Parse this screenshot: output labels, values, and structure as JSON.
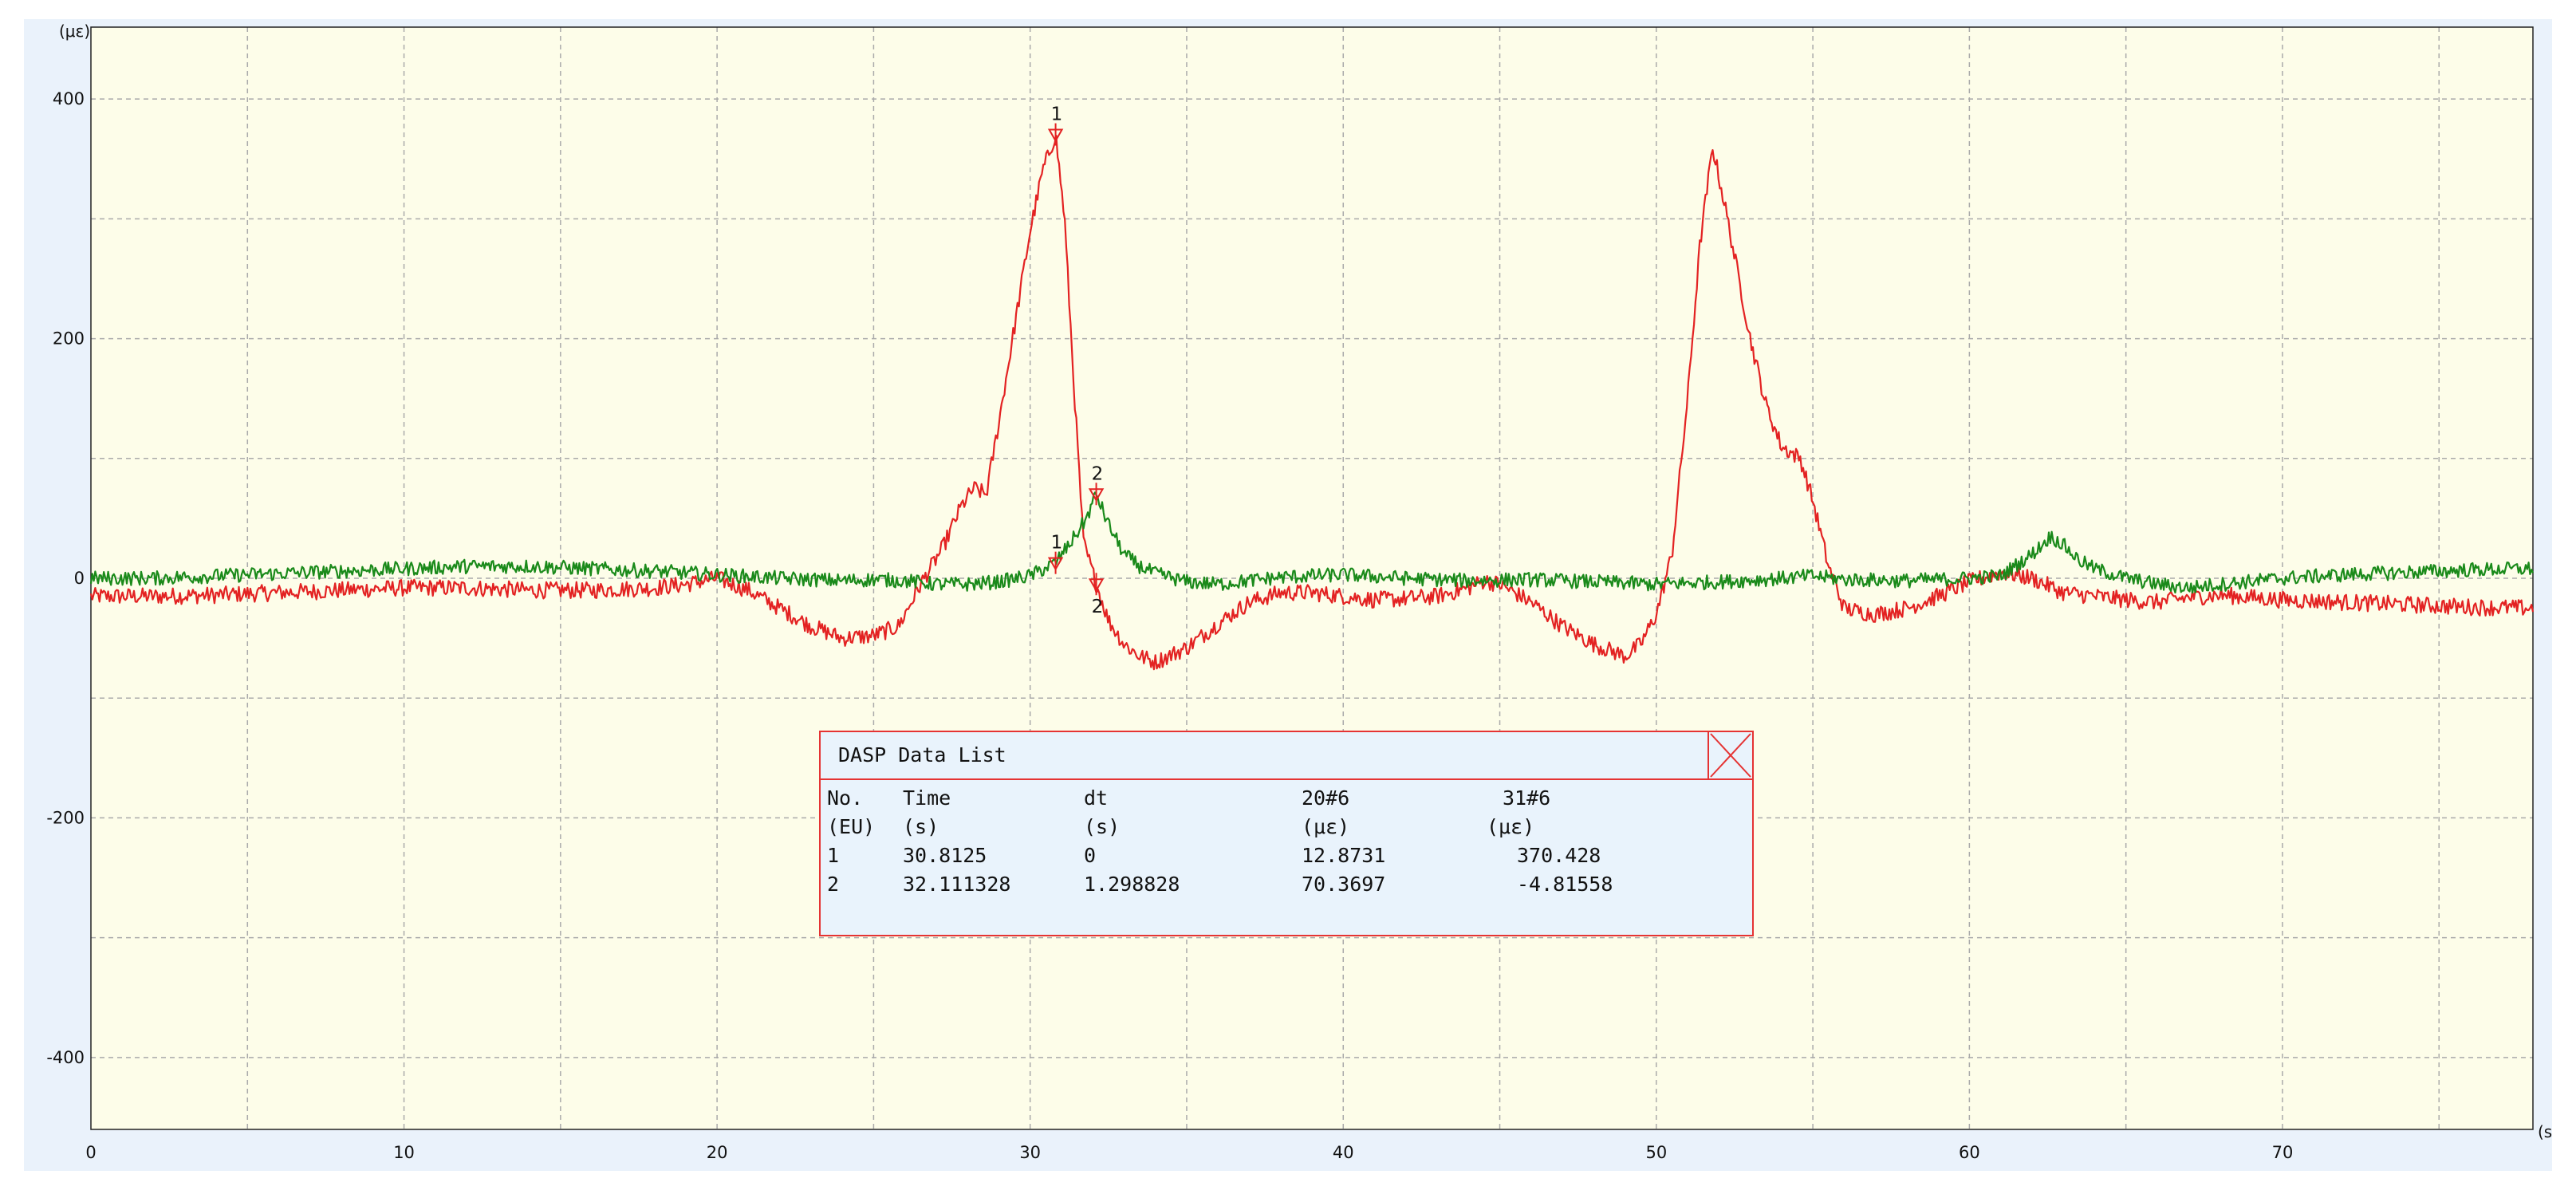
{
  "chart_data": {
    "type": "line",
    "y_unit_label": "(με)",
    "x_unit_label": "(s)",
    "xlim": [
      0,
      78
    ],
    "ylim": [
      -460,
      460
    ],
    "x_ticks": [
      0,
      10,
      20,
      30,
      40,
      50,
      60,
      70
    ],
    "y_ticks": [
      -400,
      -200,
      0,
      200,
      400
    ],
    "y_minor_gridlines": [
      -300,
      -100,
      100,
      300
    ],
    "x_minor_gridlines": [
      5,
      15,
      25,
      35,
      45,
      55,
      65,
      75
    ],
    "grid": true,
    "background_color": "#fdfde9",
    "frame_color": "#eaf2fb",
    "series": [
      {
        "color": "#e32222",
        "x": [
          0,
          2,
          4,
          6,
          8,
          10,
          12,
          14,
          16,
          18,
          19,
          20,
          21,
          22,
          23,
          24,
          25,
          25.8,
          26.5,
          27.2,
          27.8,
          28.2,
          28.6,
          29,
          29.5,
          30,
          30.4,
          30.8125,
          31.1,
          31.4,
          31.7,
          32.111328,
          32.5,
          33,
          33.5,
          34,
          35,
          36,
          37,
          38,
          39,
          40,
          41,
          42,
          43,
          44,
          44.5,
          45,
          46,
          47,
          48,
          49,
          49.5,
          50,
          50.5,
          51,
          51.4,
          51.8,
          52.2,
          52.6,
          53,
          53.5,
          54,
          54.3,
          54.6,
          55,
          55.5,
          56,
          56.5,
          57,
          58,
          59,
          60,
          61,
          62,
          63,
          64,
          65,
          66,
          67,
          68,
          70,
          72,
          74,
          76,
          78
        ],
        "values": [
          -15,
          -15,
          -14,
          -12,
          -10,
          -8,
          -8,
          -10,
          -10,
          -8,
          -5,
          0,
          -10,
          -25,
          -40,
          -50,
          -48,
          -40,
          -5,
          25,
          60,
          75,
          70,
          130,
          210,
          290,
          340,
          370.428,
          300,
          160,
          30,
          -4.81558,
          -35,
          -55,
          -65,
          -70,
          -58,
          -38,
          -20,
          -12,
          -12,
          -15,
          -18,
          -17,
          -15,
          -8,
          -2,
          -5,
          -20,
          -40,
          -55,
          -65,
          -55,
          -30,
          20,
          150,
          280,
          360,
          310,
          255,
          200,
          145,
          110,
          105,
          100,
          65,
          10,
          -25,
          -28,
          -30,
          -25,
          -15,
          -3,
          5,
          0,
          -12,
          -15,
          -18,
          -20,
          -16,
          -14,
          -18,
          -20,
          -22,
          -24,
          -25
        ]
      },
      {
        "color": "#1a8a1a",
        "x": [
          0,
          2,
          4,
          6,
          8,
          10,
          12,
          14,
          16,
          18,
          20,
          22,
          24,
          25,
          26,
          27,
          28,
          29,
          30,
          30.8125,
          31.3,
          31.8,
          32.111328,
          32.5,
          33,
          33.5,
          34,
          35,
          36,
          38,
          40,
          42,
          44,
          46,
          48,
          50,
          52,
          54,
          55,
          56,
          58,
          60,
          61,
          62,
          62.6,
          63,
          63.5,
          64,
          65,
          66,
          67,
          68,
          70,
          72,
          74,
          76,
          78
        ],
        "values": [
          0,
          0,
          2,
          4,
          6,
          8,
          10,
          10,
          8,
          6,
          3,
          0,
          -2,
          -1,
          -2,
          -5,
          -5,
          -3,
          2,
          12.8731,
          30,
          50,
          70.3697,
          45,
          20,
          10,
          4,
          -3,
          -5,
          1,
          3,
          0,
          -2,
          -1,
          -3,
          -5,
          -3,
          0,
          2,
          -1,
          -2,
          0,
          2,
          20,
          35,
          28,
          15,
          8,
          0,
          -5,
          -8,
          -5,
          0,
          3,
          5,
          7,
          8
        ]
      }
    ],
    "cursors": [
      {
        "label": "1",
        "x": 30.8125
      },
      {
        "label": "2",
        "x": 32.111328
      }
    ]
  },
  "data_list": {
    "title": "DASP Data List",
    "headers": [
      "No.",
      "Time",
      "dt",
      "20#6",
      "31#6"
    ],
    "units": [
      "(EU)",
      "(s)",
      "(s)",
      "(με)",
      "(με)"
    ],
    "rows": [
      [
        "1",
        "30.8125",
        "0",
        "12.8731",
        "370.428"
      ],
      [
        "2",
        "32.111328",
        "1.298828",
        "70.3697",
        "-4.81558"
      ]
    ]
  }
}
